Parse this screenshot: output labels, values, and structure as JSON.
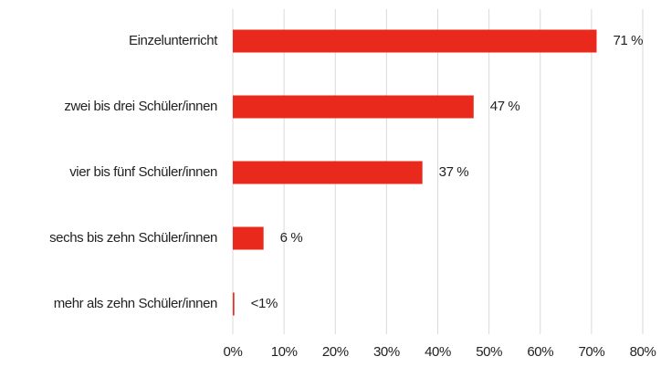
{
  "chart_data": {
    "type": "bar",
    "orientation": "horizontal",
    "categories": [
      "Einzelunterricht",
      "zwei bis drei Schüler/innen",
      "vier bis fünf Schüler/innen",
      "sechs bis zehn Schüler/innen",
      "mehr als zehn Schüler/innen"
    ],
    "values": [
      71,
      47,
      37,
      6,
      0.3
    ],
    "value_labels": [
      "71 %",
      "47 %",
      "37 %",
      "6 %",
      "<1%"
    ],
    "color": "#e8291c",
    "xlim": [
      0,
      80
    ],
    "xticks": [
      {
        "value": 0,
        "label": "0%"
      },
      {
        "value": 10,
        "label": "10%"
      },
      {
        "value": 20,
        "label": "20%"
      },
      {
        "value": 30,
        "label": "30%"
      },
      {
        "value": 40,
        "label": "40%"
      },
      {
        "value": 50,
        "label": "50%"
      },
      {
        "value": 60,
        "label": "60%"
      },
      {
        "value": 70,
        "label": "70%"
      },
      {
        "value": 80,
        "label": "80%"
      }
    ],
    "grid": true
  }
}
